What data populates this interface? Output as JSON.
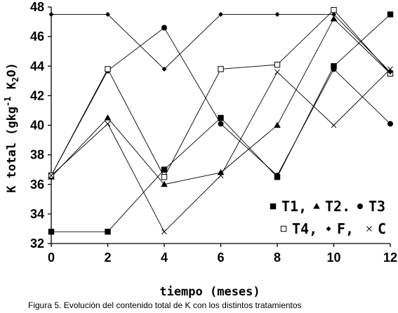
{
  "chart_data": {
    "type": "line",
    "xlabel": "tiempo (meses)",
    "ylabel": "K total (gkg  K O)",
    "ylabel_parts": {
      "main": "K total (gkg",
      "sup": "-1",
      "mid": " K",
      "sub": "2",
      "end": "O)"
    },
    "x": [
      0,
      2,
      4,
      6,
      8,
      10,
      12
    ],
    "xlim": [
      0,
      12
    ],
    "ylim": [
      32,
      48
    ],
    "xticks": [
      "0",
      "2",
      "4",
      "6",
      "8",
      "10",
      "12"
    ],
    "yticks": [
      "32",
      "34",
      "36",
      "38",
      "40",
      "42",
      "44",
      "46",
      "48"
    ],
    "grid": false,
    "legend_position": "bottom-right",
    "series": [
      {
        "name": "T1",
        "marker": "square-filled",
        "values": [
          32.8,
          32.8,
          37.0,
          40.5,
          36.5,
          44.0,
          47.5
        ]
      },
      {
        "name": "T2",
        "marker": "triangle-filled",
        "values": [
          36.5,
          40.5,
          36.0,
          36.8,
          40.0,
          47.2,
          43.5
        ]
      },
      {
        "name": "T3",
        "marker": "circle-filled",
        "values": [
          36.6,
          43.7,
          46.6,
          40.1,
          36.6,
          43.8,
          40.1
        ]
      },
      {
        "name": "T4",
        "marker": "square-open",
        "values": [
          36.6,
          43.8,
          36.5,
          43.8,
          44.1,
          47.8,
          43.5
        ]
      },
      {
        "name": "F",
        "marker": "diamond-filled",
        "values": [
          47.5,
          47.5,
          43.8,
          47.5,
          47.5,
          47.5,
          43.6
        ]
      },
      {
        "name": "C",
        "marker": "x",
        "values": [
          36.6,
          40.1,
          32.8,
          36.6,
          43.6,
          40.0,
          43.8
        ]
      }
    ]
  },
  "legend": {
    "row1": [
      {
        "marker": "square-filled",
        "label": "T1",
        "sep": ","
      },
      {
        "marker": "triangle-filled",
        "label": "T2",
        "sep": "."
      },
      {
        "marker": "circle-filled",
        "label": "T3",
        "sep": ""
      }
    ],
    "row2": [
      {
        "marker": "square-open",
        "label": "T4",
        "sep": ","
      },
      {
        "marker": "diamond-filled",
        "label": "F",
        "sep": ","
      },
      {
        "marker": "x",
        "label": "C",
        "sep": ""
      }
    ]
  },
  "caption": "Figura 5. Evolución del contenido total de K con los distintos tratamientos"
}
